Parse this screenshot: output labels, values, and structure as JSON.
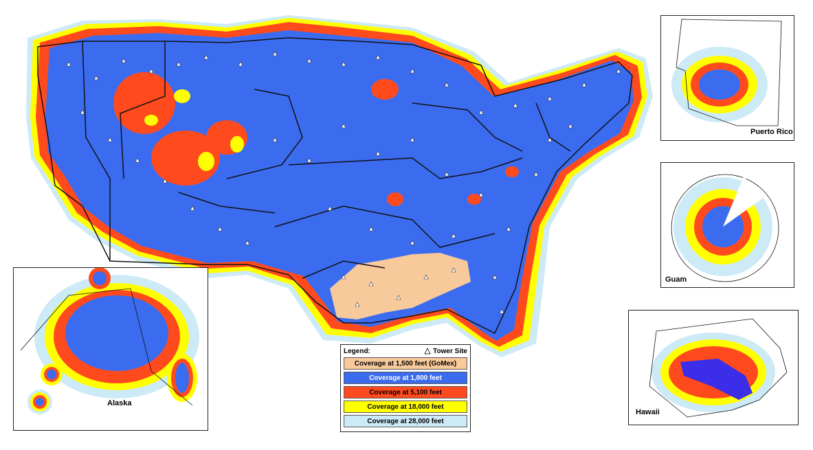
{
  "colors": {
    "gomex": "#f8c99a",
    "c1800": "#3b6cf0",
    "c5100": "#ff4a1e",
    "c18000": "#ffff00",
    "c28000": "#cdeaf7",
    "border": "#111111",
    "rivers": "#22cc66"
  },
  "insets": {
    "alaska": "Alaska",
    "puerto_rico": "Puerto Rico",
    "guam": "Guam",
    "hawaii": "Hawaii"
  },
  "legend": {
    "title": "Legend:",
    "tower_label": "Tower Site",
    "tower_icon": "triangle-icon",
    "rows": [
      {
        "label": "Coverage at 1,500 feet (GoMex)",
        "color": "#f8c99a",
        "text": "#000000"
      },
      {
        "label": "Coverage at 1,800 feet",
        "color": "#3b6cf0",
        "text": "#ffffff"
      },
      {
        "label": "Coverage at 5,100 feet",
        "color": "#ff4a1e",
        "text": "#000000"
      },
      {
        "label": "Coverage at 18,000 feet",
        "color": "#ffff00",
        "text": "#000000"
      },
      {
        "label": "Coverage at 28,000 feet",
        "color": "#cdeaf7",
        "text": "#000000"
      }
    ]
  }
}
